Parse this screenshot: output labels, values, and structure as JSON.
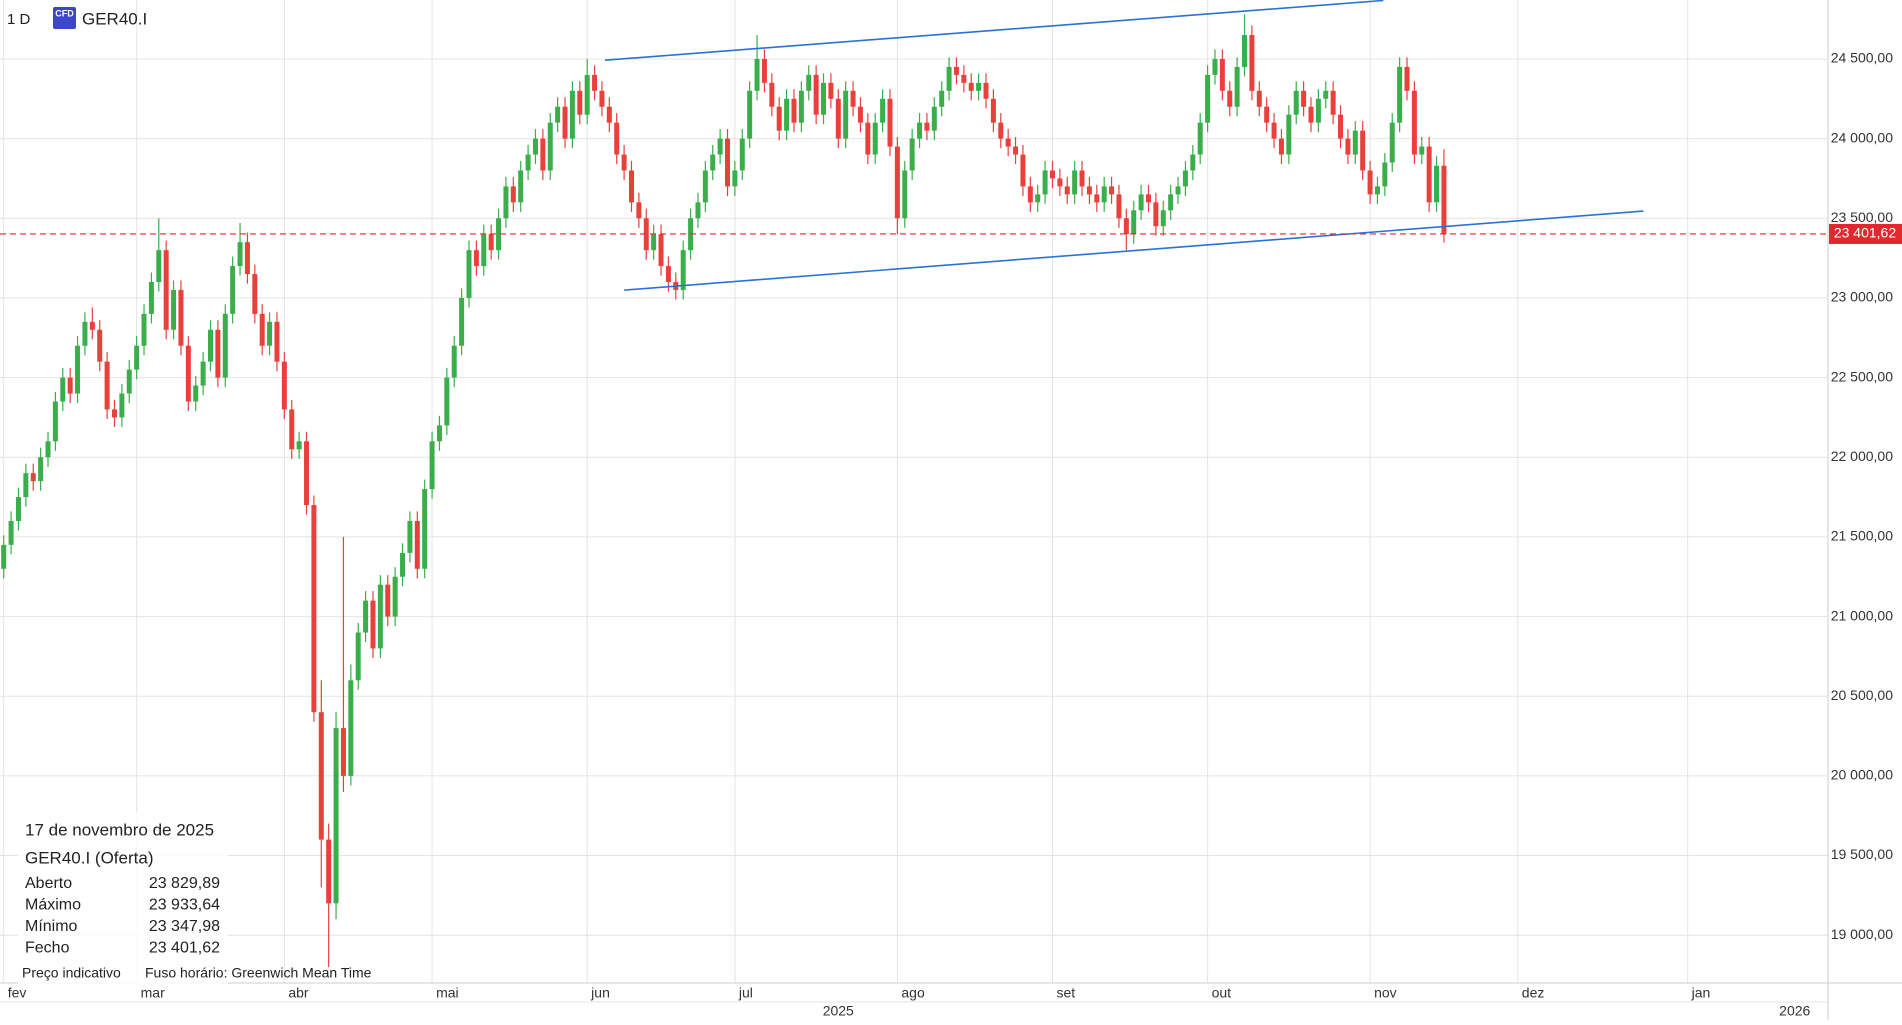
{
  "chart_data": {
    "type": "candlestick",
    "timeframe": "1 D",
    "badge": "CFD",
    "symbol": "GER40.I",
    "up_color": "#3aae4a",
    "down_color": "#e8413c",
    "grid": true,
    "xlim": [
      -0.5,
      247
    ],
    "ylim": [
      18700,
      24870
    ],
    "xticks": [
      {
        "value": 0,
        "label": "fev"
      },
      {
        "value": 18,
        "label": "mar"
      },
      {
        "value": 38,
        "label": "abr"
      },
      {
        "value": 58,
        "label": "mai"
      },
      {
        "value": 79,
        "label": "jun"
      },
      {
        "value": 99,
        "label": "jul"
      },
      {
        "value": 121,
        "label": "ago"
      },
      {
        "value": 142,
        "label": "set"
      },
      {
        "value": 163,
        "label": "out"
      },
      {
        "value": 185,
        "label": "nov"
      },
      {
        "value": 205,
        "label": "dez"
      },
      {
        "value": 228,
        "label": "jan"
      }
    ],
    "year_labels": [
      {
        "value": 113,
        "label": "2025"
      },
      {
        "value": 242.5,
        "label": "2026"
      }
    ],
    "yticks": [
      {
        "value": 19000,
        "label": "19 000,00"
      },
      {
        "value": 19500,
        "label": "19 500,00"
      },
      {
        "value": 20000,
        "label": "20 000,00"
      },
      {
        "value": 20500,
        "label": "20 500,00"
      },
      {
        "value": 21000,
        "label": "21 000,00"
      },
      {
        "value": 21500,
        "label": "21 500,00"
      },
      {
        "value": 22000,
        "label": "22 000,00"
      },
      {
        "value": 22500,
        "label": "22 500,00"
      },
      {
        "value": 23000,
        "label": "23 000,00"
      },
      {
        "value": 23500,
        "label": "23 500,00"
      },
      {
        "value": 24000,
        "label": "24 000,00"
      },
      {
        "value": 24500,
        "label": "24 500,00"
      }
    ],
    "last_price": {
      "value": 23401.62,
      "label": "23 401,62",
      "color": "#e0282e"
    },
    "trendlines": [
      {
        "color": "#2a72d6",
        "x": [
          81.4,
          186.8
        ],
        "y": [
          24492,
          24867
        ]
      },
      {
        "color": "#2a72d6",
        "x": [
          84,
          222
        ],
        "y": [
          23049,
          23545
        ]
      }
    ],
    "candles": [
      [
        21300,
        21510,
        21240,
        21450
      ],
      [
        21450,
        21660,
        21390,
        21600
      ],
      [
        21600,
        21810,
        21540,
        21750
      ],
      [
        21750,
        21960,
        21690,
        21900
      ],
      [
        21900,
        21960,
        21790,
        21850
      ],
      [
        21850,
        22060,
        21790,
        22000
      ],
      [
        22000,
        22160,
        21940,
        22100
      ],
      [
        22100,
        22410,
        22040,
        22350
      ],
      [
        22350,
        22560,
        22290,
        22500
      ],
      [
        22500,
        22560,
        22340,
        22400
      ],
      [
        22400,
        22760,
        22340,
        22700
      ],
      [
        22700,
        22910,
        22640,
        22850
      ],
      [
        22850,
        22940,
        22740,
        22800
      ],
      [
        22800,
        22860,
        22540,
        22600
      ],
      [
        22600,
        22660,
        22240,
        22300
      ],
      [
        22300,
        22360,
        22190,
        22250
      ],
      [
        22250,
        22460,
        22190,
        22400
      ],
      [
        22400,
        22610,
        22340,
        22550
      ],
      [
        22550,
        22760,
        22490,
        22700
      ],
      [
        22700,
        22960,
        22640,
        22900
      ],
      [
        22900,
        23160,
        22840,
        23100
      ],
      [
        23100,
        23500,
        23040,
        23300
      ],
      [
        23300,
        23360,
        22740,
        22800
      ],
      [
        22800,
        23110,
        22740,
        23050
      ],
      [
        23050,
        23110,
        22640,
        22700
      ],
      [
        22700,
        22760,
        22290,
        22350
      ],
      [
        22350,
        22510,
        22290,
        22450
      ],
      [
        22450,
        22660,
        22390,
        22600
      ],
      [
        22600,
        22860,
        22540,
        22800
      ],
      [
        22800,
        22860,
        22440,
        22500
      ],
      [
        22500,
        22960,
        22440,
        22900
      ],
      [
        22900,
        23260,
        22840,
        23200
      ],
      [
        23200,
        23470,
        23140,
        23350
      ],
      [
        23350,
        23410,
        23090,
        23150
      ],
      [
        23150,
        23210,
        22840,
        22900
      ],
      [
        22900,
        22960,
        22640,
        22700
      ],
      [
        22700,
        22910,
        22640,
        22850
      ],
      [
        22850,
        22910,
        22540,
        22600
      ],
      [
        22600,
        22660,
        22240,
        22300
      ],
      [
        22300,
        22360,
        21990,
        22050
      ],
      [
        22050,
        22160,
        21990,
        22100
      ],
      [
        22100,
        22160,
        21640,
        21700
      ],
      [
        21700,
        21760,
        20340,
        20400
      ],
      [
        20400,
        20600,
        19300,
        19600
      ],
      [
        19600,
        19700,
        18800,
        19200
      ],
      [
        19200,
        20400,
        19100,
        20300
      ],
      [
        20300,
        21500,
        19900,
        20000
      ],
      [
        20000,
        20700,
        19940,
        20600
      ],
      [
        20600,
        20960,
        20540,
        20900
      ],
      [
        20900,
        21160,
        20840,
        21100
      ],
      [
        21100,
        21160,
        20740,
        20800
      ],
      [
        20800,
        21260,
        20740,
        21200
      ],
      [
        21200,
        21260,
        20940,
        21000
      ],
      [
        21000,
        21310,
        20940,
        21250
      ],
      [
        21250,
        21460,
        21190,
        21400
      ],
      [
        21400,
        21660,
        21340,
        21600
      ],
      [
        21600,
        21660,
        21240,
        21300
      ],
      [
        21300,
        21860,
        21240,
        21800
      ],
      [
        21800,
        22160,
        21740,
        22100
      ],
      [
        22100,
        22260,
        22040,
        22200
      ],
      [
        22200,
        22560,
        22140,
        22500
      ],
      [
        22500,
        22760,
        22440,
        22700
      ],
      [
        22700,
        23060,
        22640,
        23000
      ],
      [
        23000,
        23360,
        22940,
        23300
      ],
      [
        23300,
        23360,
        23140,
        23200
      ],
      [
        23200,
        23460,
        23140,
        23400
      ],
      [
        23400,
        23460,
        23240,
        23300
      ],
      [
        23300,
        23560,
        23240,
        23500
      ],
      [
        23500,
        23760,
        23440,
        23700
      ],
      [
        23700,
        23760,
        23540,
        23600
      ],
      [
        23600,
        23860,
        23540,
        23800
      ],
      [
        23800,
        23960,
        23740,
        23900
      ],
      [
        23900,
        24060,
        23840,
        24000
      ],
      [
        24000,
        24060,
        23740,
        23800
      ],
      [
        23800,
        24160,
        23740,
        24100
      ],
      [
        24100,
        24260,
        24040,
        24200
      ],
      [
        24200,
        24260,
        23940,
        24000
      ],
      [
        24000,
        24360,
        23940,
        24300
      ],
      [
        24300,
        24360,
        24090,
        24150
      ],
      [
        24150,
        24500,
        24090,
        24400
      ],
      [
        24400,
        24460,
        24240,
        24300
      ],
      [
        24300,
        24360,
        24140,
        24200
      ],
      [
        24200,
        24260,
        24040,
        24100
      ],
      [
        24100,
        24160,
        23840,
        23900
      ],
      [
        23900,
        23960,
        23740,
        23800
      ],
      [
        23800,
        23860,
        23540,
        23600
      ],
      [
        23600,
        23660,
        23440,
        23500
      ],
      [
        23500,
        23560,
        23240,
        23300
      ],
      [
        23300,
        23460,
        23240,
        23400
      ],
      [
        23400,
        23460,
        23140,
        23200
      ],
      [
        23200,
        23260,
        23040,
        23100
      ],
      [
        23100,
        23160,
        22990,
        23050
      ],
      [
        23050,
        23360,
        22990,
        23300
      ],
      [
        23300,
        23560,
        23240,
        23500
      ],
      [
        23500,
        23660,
        23440,
        23600
      ],
      [
        23600,
        23860,
        23540,
        23800
      ],
      [
        23800,
        23960,
        23740,
        23900
      ],
      [
        23900,
        24060,
        23840,
        24000
      ],
      [
        24000,
        24060,
        23640,
        23700
      ],
      [
        23700,
        23860,
        23640,
        23800
      ],
      [
        23800,
        24060,
        23740,
        24000
      ],
      [
        24000,
        24360,
        23940,
        24300
      ],
      [
        24300,
        24650,
        24240,
        24500
      ],
      [
        24500,
        24560,
        24290,
        24350
      ],
      [
        24350,
        24410,
        24140,
        24200
      ],
      [
        24200,
        24260,
        23990,
        24050
      ],
      [
        24050,
        24310,
        23990,
        24250
      ],
      [
        24250,
        24310,
        24040,
        24100
      ],
      [
        24100,
        24360,
        24040,
        24300
      ],
      [
        24300,
        24460,
        24240,
        24400
      ],
      [
        24400,
        24460,
        24090,
        24150
      ],
      [
        24150,
        24410,
        24090,
        24350
      ],
      [
        24350,
        24410,
        24190,
        24250
      ],
      [
        24250,
        24310,
        23940,
        24000
      ],
      [
        24000,
        24360,
        23940,
        24300
      ],
      [
        24300,
        24360,
        24140,
        24200
      ],
      [
        24200,
        24260,
        24040,
        24100
      ],
      [
        24100,
        24160,
        23840,
        23900
      ],
      [
        23900,
        24160,
        23840,
        24100
      ],
      [
        24100,
        24310,
        24040,
        24250
      ],
      [
        24250,
        24310,
        23890,
        23950
      ],
      [
        23950,
        24010,
        23400,
        23500
      ],
      [
        23500,
        23860,
        23440,
        23800
      ],
      [
        23800,
        24060,
        23740,
        24000
      ],
      [
        24000,
        24160,
        23940,
        24100
      ],
      [
        24100,
        24160,
        23990,
        24050
      ],
      [
        24050,
        24260,
        23990,
        24200
      ],
      [
        24200,
        24360,
        24140,
        24300
      ],
      [
        24300,
        24510,
        24240,
        24450
      ],
      [
        24450,
        24510,
        24340,
        24400
      ],
      [
        24400,
        24460,
        24290,
        24350
      ],
      [
        24350,
        24410,
        24240,
        24300
      ],
      [
        24300,
        24410,
        24240,
        24350
      ],
      [
        24350,
        24410,
        24190,
        24250
      ],
      [
        24250,
        24310,
        24040,
        24100
      ],
      [
        24100,
        24160,
        23940,
        24000
      ],
      [
        24000,
        24060,
        23890,
        23950
      ],
      [
        23950,
        24010,
        23840,
        23900
      ],
      [
        23900,
        23960,
        23640,
        23700
      ],
      [
        23700,
        23760,
        23540,
        23600
      ],
      [
        23600,
        23710,
        23540,
        23650
      ],
      [
        23650,
        23860,
        23590,
        23800
      ],
      [
        23800,
        23860,
        23690,
        23750
      ],
      [
        23750,
        23810,
        23640,
        23700
      ],
      [
        23700,
        23760,
        23590,
        23650
      ],
      [
        23650,
        23860,
        23590,
        23800
      ],
      [
        23800,
        23860,
        23640,
        23700
      ],
      [
        23700,
        23760,
        23590,
        23650
      ],
      [
        23650,
        23710,
        23540,
        23600
      ],
      [
        23600,
        23760,
        23540,
        23700
      ],
      [
        23700,
        23760,
        23590,
        23650
      ],
      [
        23650,
        23710,
        23440,
        23500
      ],
      [
        23500,
        23560,
        23300,
        23400
      ],
      [
        23400,
        23610,
        23340,
        23550
      ],
      [
        23550,
        23710,
        23490,
        23650
      ],
      [
        23650,
        23710,
        23540,
        23600
      ],
      [
        23600,
        23660,
        23390,
        23450
      ],
      [
        23450,
        23610,
        23390,
        23550
      ],
      [
        23550,
        23710,
        23490,
        23650
      ],
      [
        23650,
        23760,
        23590,
        23700
      ],
      [
        23700,
        23860,
        23640,
        23800
      ],
      [
        23800,
        23960,
        23740,
        23900
      ],
      [
        23900,
        24160,
        23840,
        24100
      ],
      [
        24100,
        24460,
        24040,
        24400
      ],
      [
        24400,
        24560,
        24340,
        24500
      ],
      [
        24500,
        24560,
        24240,
        24300
      ],
      [
        24300,
        24360,
        24140,
        24200
      ],
      [
        24200,
        24510,
        24140,
        24450
      ],
      [
        24450,
        24780,
        24390,
        24650
      ],
      [
        24650,
        24710,
        24240,
        24300
      ],
      [
        24300,
        24360,
        24140,
        24200
      ],
      [
        24200,
        24260,
        24040,
        24100
      ],
      [
        24100,
        24160,
        23940,
        24000
      ],
      [
        24000,
        24060,
        23840,
        23900
      ],
      [
        23900,
        24210,
        23840,
        24150
      ],
      [
        24150,
        24360,
        24090,
        24300
      ],
      [
        24300,
        24360,
        24140,
        24200
      ],
      [
        24200,
        24260,
        24040,
        24100
      ],
      [
        24100,
        24310,
        24040,
        24250
      ],
      [
        24250,
        24360,
        24190,
        24300
      ],
      [
        24300,
        24360,
        24090,
        24150
      ],
      [
        24150,
        24210,
        23940,
        24000
      ],
      [
        24000,
        24060,
        23840,
        23900
      ],
      [
        23900,
        24110,
        23840,
        24050
      ],
      [
        24050,
        24110,
        23740,
        23800
      ],
      [
        23800,
        23860,
        23590,
        23650
      ],
      [
        23650,
        23760,
        23590,
        23700
      ],
      [
        23700,
        23910,
        23640,
        23850
      ],
      [
        23850,
        24160,
        23790,
        24100
      ],
      [
        24100,
        24510,
        24040,
        24450
      ],
      [
        24450,
        24510,
        24240,
        24300
      ],
      [
        24300,
        24360,
        23840,
        23900
      ],
      [
        23900,
        24010,
        23840,
        23950
      ],
      [
        23950,
        24010,
        23540,
        23600
      ],
      [
        23600,
        23890,
        23540,
        23830
      ],
      [
        23829.89,
        23933.64,
        23347.98,
        23401.62
      ]
    ]
  },
  "info": {
    "date": "17 de novembro de 2025",
    "title": "GER40.I (Oferta)",
    "rows": [
      [
        "Aberto",
        "23 829,89"
      ],
      [
        "Máximo",
        "23 933,64"
      ],
      [
        "Mínimo",
        "23 347,98"
      ],
      [
        "Fecho",
        "23 401,62"
      ]
    ],
    "footer": [
      "Preço indicativo",
      "Fuso horário: Greenwich Mean Time"
    ]
  }
}
